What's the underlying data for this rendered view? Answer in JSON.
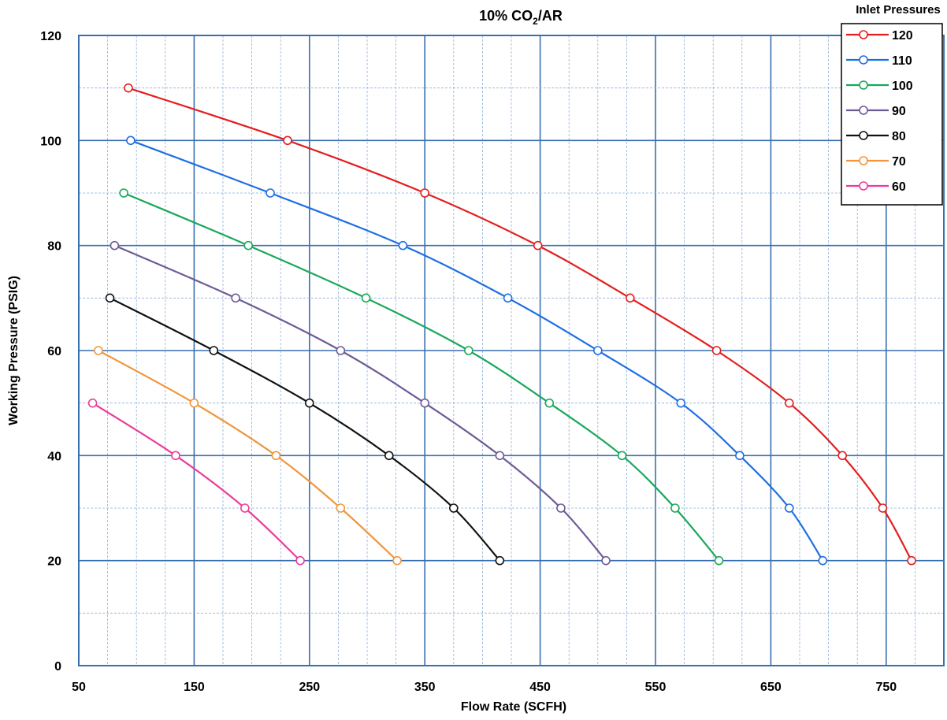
{
  "chart_data": {
    "type": "line",
    "title": "10% CO",
    "title_sub": "2",
    "title_tail": "/AR",
    "xlabel": "Flow Rate (SCFH)",
    "ylabel": "Working Pressure (PSIG)",
    "xlim": [
      50,
      800
    ],
    "ylim": [
      0,
      120
    ],
    "xticks": [
      50,
      150,
      250,
      350,
      450,
      550,
      650,
      750
    ],
    "yticks": [
      0,
      20,
      40,
      60,
      80,
      100,
      120
    ],
    "grid": true,
    "legend": {
      "title": "Inlet Pressures",
      "position": "top-right"
    },
    "series": [
      {
        "name": "120",
        "color": "#e41e1e",
        "x": [
          93,
          231,
          350,
          448,
          528,
          603,
          666,
          712,
          747,
          772
        ],
        "y": [
          110,
          100,
          90,
          80,
          70,
          60,
          50,
          40,
          30,
          20
        ]
      },
      {
        "name": "110",
        "color": "#1e6fe4",
        "x": [
          95,
          216,
          331,
          422,
          500,
          572,
          623,
          666,
          695
        ],
        "y": [
          100,
          90,
          80,
          70,
          60,
          50,
          40,
          30,
          20
        ]
      },
      {
        "name": "100",
        "color": "#1aa85a",
        "x": [
          89,
          197,
          299,
          388,
          458,
          521,
          567,
          605
        ],
        "y": [
          90,
          80,
          70,
          60,
          50,
          40,
          30,
          20
        ]
      },
      {
        "name": "90",
        "color": "#6e5a96",
        "x": [
          81,
          186,
          277,
          350,
          415,
          468,
          507
        ],
        "y": [
          80,
          70,
          60,
          50,
          40,
          30,
          20
        ]
      },
      {
        "name": "80",
        "color": "#111111",
        "x": [
          77,
          167,
          250,
          319,
          375,
          415
        ],
        "y": [
          70,
          60,
          50,
          40,
          30,
          20
        ]
      },
      {
        "name": "70",
        "color": "#f0963c",
        "x": [
          67,
          150,
          221,
          277,
          326
        ],
        "y": [
          60,
          50,
          40,
          30,
          20
        ]
      },
      {
        "name": "60",
        "color": "#ec3c9a",
        "x": [
          62,
          134,
          194,
          242
        ],
        "y": [
          50,
          40,
          30,
          20
        ]
      }
    ]
  }
}
